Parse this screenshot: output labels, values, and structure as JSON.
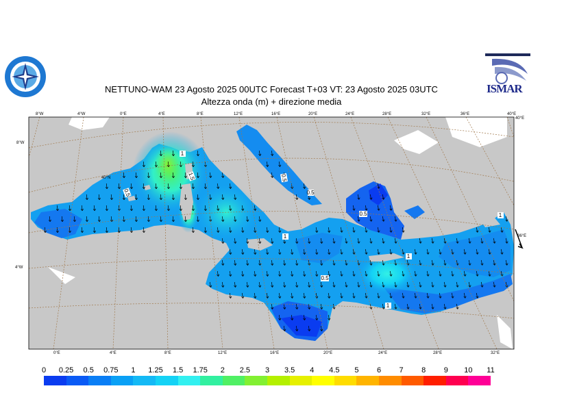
{
  "title_line1": "NETTUNO-WAM  23   Agosto  2025 00UTC Forecast T+03 VT: 23   Agosto  2025 03UTC",
  "title_line2": "Altezza onda (m) + direzione media",
  "logo_right_text": "ISMAR",
  "top_axis": [
    "8°W",
    "4°W",
    "0°E",
    "4°E",
    "8°E",
    "12°E",
    "16°E",
    "20°E",
    "24°E",
    "28°E",
    "32°E",
    "36°E",
    "40°E"
  ],
  "bottom_axis": [
    "0°E",
    "4°E",
    "8°E",
    "12°E",
    "16°E",
    "20°E",
    "24°E",
    "28°E",
    "32°E"
  ],
  "left_axis": [
    "8°W",
    "4°W"
  ],
  "right_axis": [
    "40°E",
    "36°E"
  ],
  "inner_labels": [
    "40°N"
  ],
  "contour_labels": [
    "1",
    "1.5",
    "0.5",
    "0.5",
    "0.5",
    "1",
    "0.5",
    "1",
    "1",
    "0.5",
    "1"
  ],
  "legend": {
    "values": [
      "0",
      "0.25",
      "0.5",
      "0.75",
      "1",
      "1.25",
      "1.5",
      "1.75",
      "2",
      "2.5",
      "3",
      "3.5",
      "4",
      "4.5",
      "5",
      "6",
      "7",
      "8",
      "9",
      "10",
      "11"
    ],
    "colors": [
      "#0a3cf0",
      "#0a5af5",
      "#0a7ef5",
      "#0aa0f5",
      "#14b9f5",
      "#14d2f5",
      "#32f0f0",
      "#32f0a0",
      "#50f064",
      "#82f032",
      "#b4f000",
      "#e6f000",
      "#ffff00",
      "#ffdc00",
      "#ffb400",
      "#ff8c00",
      "#ff5a00",
      "#ff1e00",
      "#ff0050",
      "#ff0096"
    ]
  },
  "colors": {
    "land": "#c8c8c8",
    "sea_low": "#1464f0",
    "sea_mid": "#14a0f0",
    "sea_high": "#32f0a0",
    "peak": "#8cf032",
    "grid": "#a0784b"
  }
}
